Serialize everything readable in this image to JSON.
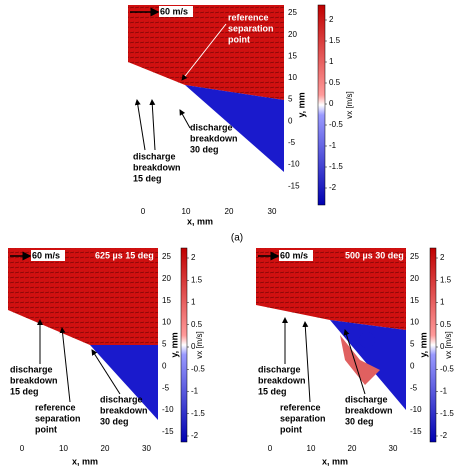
{
  "caption_a": "(a)",
  "panels": [
    {
      "speed_label": "60 m/s",
      "xlabel": "x, mm",
      "ylabel": "y, mm",
      "colorbar_label": "vx [m/s]",
      "xticks": [
        0,
        10,
        20,
        30
      ],
      "yticks": [
        -15,
        -10,
        -5,
        0,
        5,
        10,
        15,
        20,
        25
      ],
      "cticks": [
        2,
        1.5,
        1,
        0.5,
        0,
        -0.5,
        -1,
        -1.5,
        -2
      ],
      "annotations": [
        [
          "reference",
          "separation",
          "point"
        ],
        [
          "discharge",
          "breakdown",
          "15 deg"
        ],
        [
          "discharge",
          "breakdown",
          "30 deg"
        ]
      ]
    },
    {
      "speed_label": "60 m/s",
      "title": "625 µs 15 deg",
      "xlabel": "x, mm",
      "ylabel": "y, mm",
      "colorbar_label": "vx [m/s]",
      "xticks": [
        0,
        10,
        20,
        30
      ],
      "yticks": [
        -15,
        -10,
        -5,
        0,
        5,
        10,
        15,
        20,
        25
      ],
      "cticks": [
        2,
        1.5,
        1,
        0.5,
        0,
        -0.5,
        -1,
        -1.5,
        -2
      ],
      "annotations": [
        [
          "discharge",
          "breakdown",
          "15 deg"
        ],
        [
          "reference",
          "separation",
          "point"
        ],
        [
          "discharge",
          "breakdown",
          "30 deg"
        ]
      ]
    },
    {
      "speed_label": "60 m/s",
      "title": "500 µs 30 deg",
      "xlabel": "x, mm",
      "ylabel": "y, mm",
      "colorbar_label": "vx [m/s]",
      "xticks": [
        0,
        10,
        20,
        30
      ],
      "yticks": [
        -15,
        -10,
        -5,
        0,
        5,
        10,
        15,
        20,
        25
      ],
      "cticks": [
        2,
        1.5,
        1,
        0.5,
        0,
        -0.5,
        -1,
        -1.5,
        -2
      ],
      "annotations": [
        [
          "discharge",
          "breakdown",
          "15 deg"
        ],
        [
          "reference",
          "separation",
          "point"
        ],
        [
          "discharge",
          "breakdown",
          "30 deg"
        ]
      ]
    }
  ]
}
